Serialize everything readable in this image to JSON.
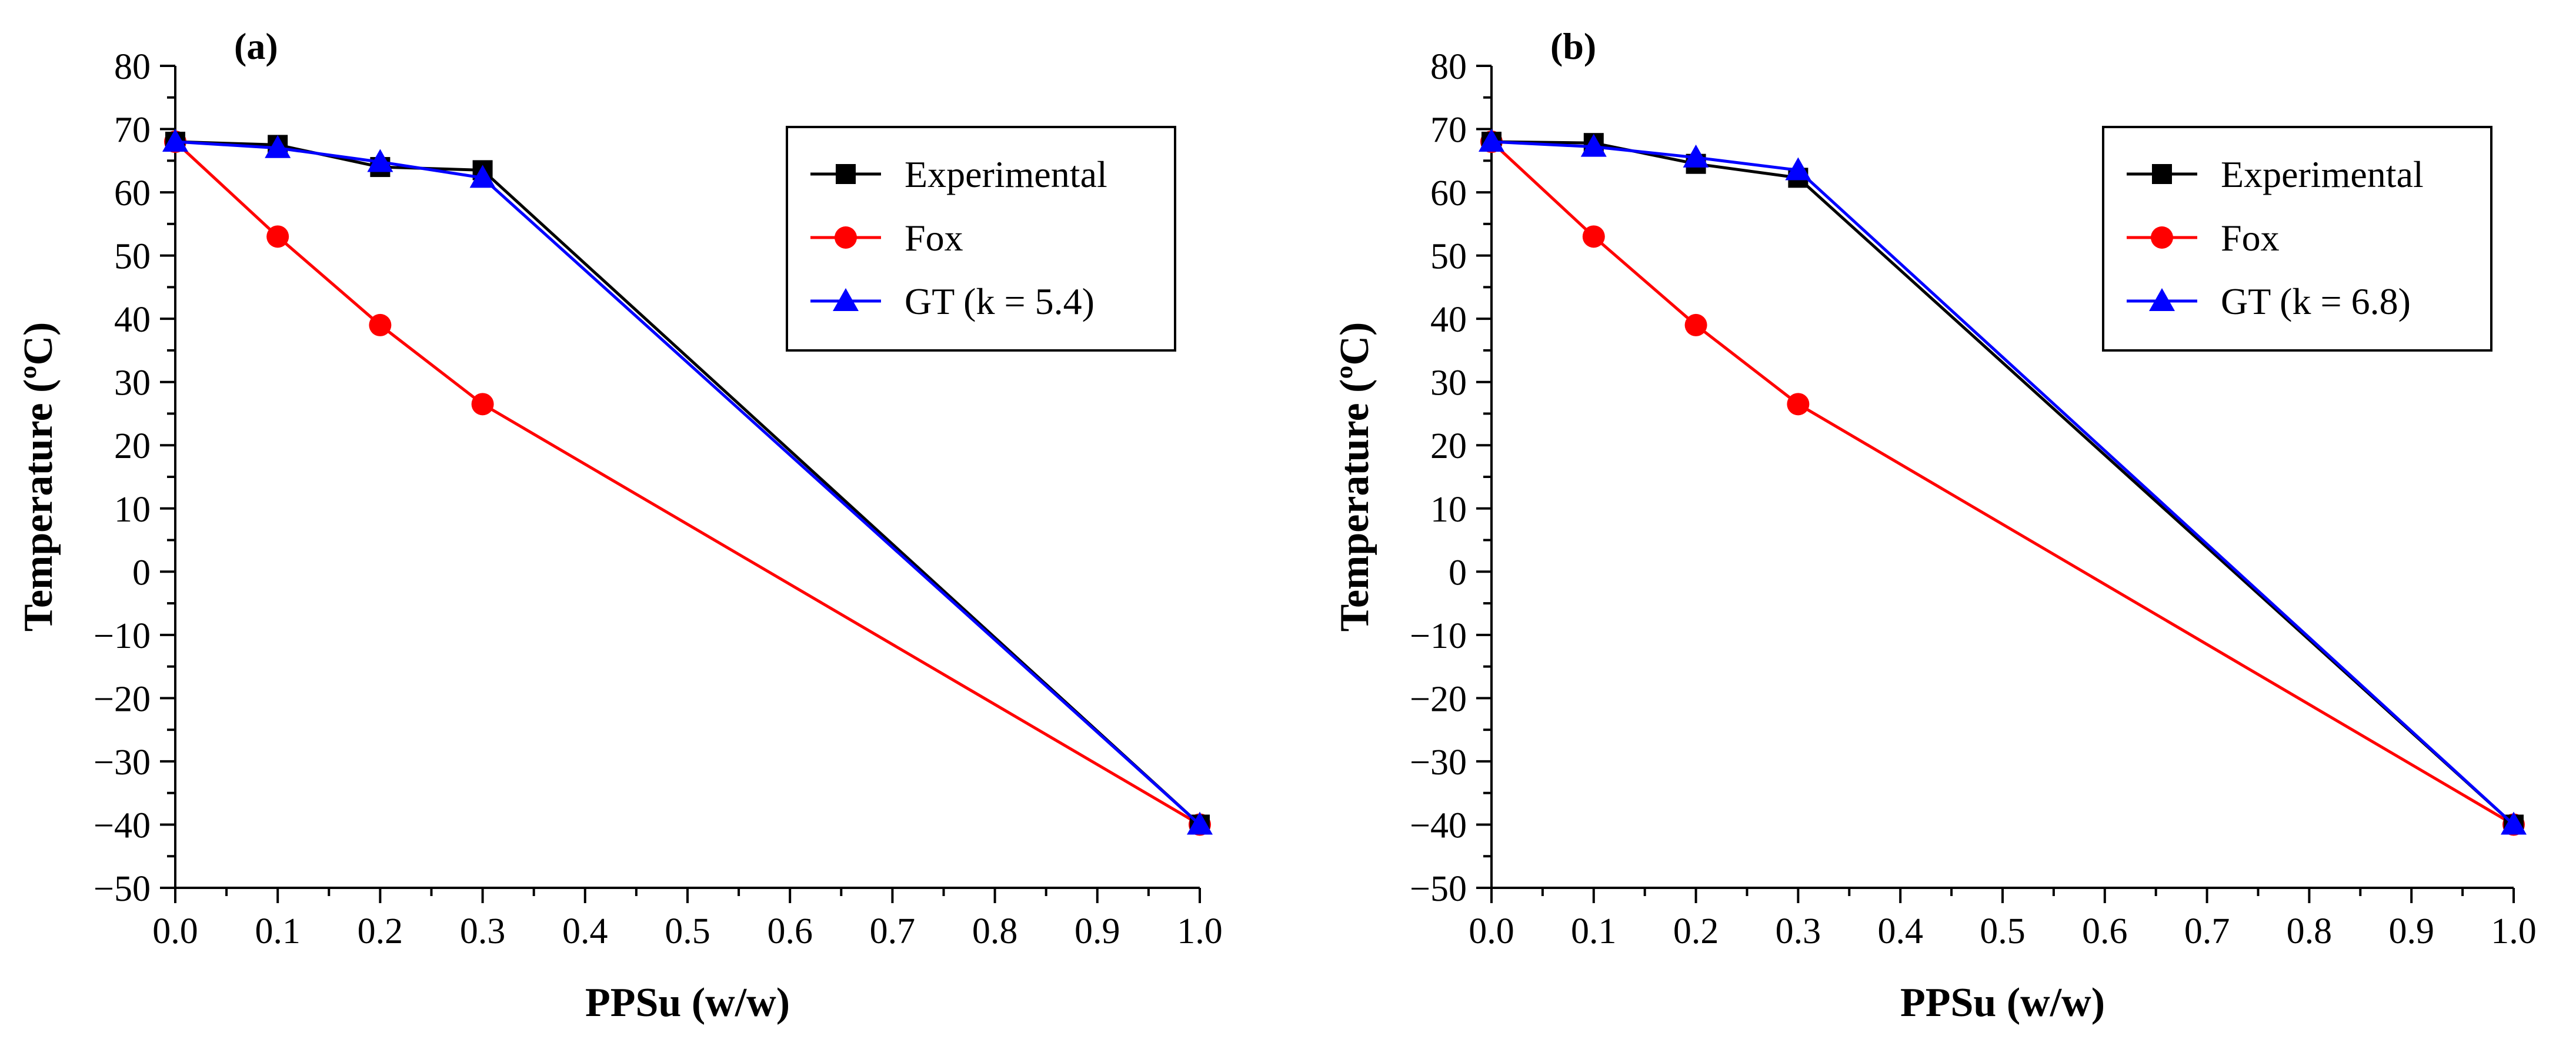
{
  "chart_data": [
    {
      "type": "line",
      "panel_label": "(a)",
      "title": "",
      "xlabel": "PPSu (w/w)",
      "ylabel": "Temperature (ºC)",
      "xlim": [
        0.0,
        1.0
      ],
      "ylim": [
        -50,
        80
      ],
      "x_ticks": [
        "0.0",
        "0.1",
        "0.2",
        "0.3",
        "0.4",
        "0.5",
        "0.6",
        "0.7",
        "0.8",
        "0.9",
        "1.0"
      ],
      "y_ticks": [
        "80",
        "70",
        "60",
        "50",
        "40",
        "30",
        "20",
        "10",
        "0",
        "−10",
        "−20",
        "−30",
        "−40",
        "−50"
      ],
      "grid": false,
      "legend_position": "top-right",
      "series": [
        {
          "name": "Experimental",
          "marker": "square",
          "color": "#000000",
          "x": [
            0.0,
            0.1,
            0.2,
            0.3,
            1.0
          ],
          "values": [
            68.0,
            67.5,
            64.0,
            63.5,
            -40.0
          ]
        },
        {
          "name": "Fox",
          "marker": "circle",
          "color": "#ff0000",
          "x": [
            0.0,
            0.1,
            0.2,
            0.3,
            1.0
          ],
          "values": [
            68.0,
            53.0,
            39.0,
            26.5,
            -40.0
          ]
        },
        {
          "name": "GT (k = 5.4)",
          "marker": "triangle",
          "color": "#0000ff",
          "x": [
            0.0,
            0.1,
            0.2,
            0.3,
            1.0
          ],
          "values": [
            68.0,
            67.0,
            64.8,
            62.3,
            -40.0
          ]
        }
      ]
    },
    {
      "type": "line",
      "panel_label": "(b)",
      "title": "",
      "xlabel": "PPSu (w/w)",
      "ylabel": "Temperature (ºC)",
      "xlim": [
        0.0,
        1.0
      ],
      "ylim": [
        -50,
        80
      ],
      "x_ticks": [
        "0.0",
        "0.1",
        "0.2",
        "0.3",
        "0.4",
        "0.5",
        "0.6",
        "0.7",
        "0.8",
        "0.9",
        "1.0"
      ],
      "y_ticks": [
        "80",
        "70",
        "60",
        "50",
        "40",
        "30",
        "20",
        "10",
        "0",
        "−10",
        "−20",
        "−30",
        "−40",
        "−50"
      ],
      "grid": false,
      "legend_position": "top-right",
      "series": [
        {
          "name": "Experimental",
          "marker": "square",
          "color": "#000000",
          "x": [
            0.0,
            0.1,
            0.2,
            0.3,
            1.0
          ],
          "values": [
            68.0,
            67.8,
            64.5,
            62.3,
            -40.0
          ]
        },
        {
          "name": "Fox",
          "marker": "circle",
          "color": "#ff0000",
          "x": [
            0.0,
            0.1,
            0.2,
            0.3,
            1.0
          ],
          "values": [
            68.0,
            53.0,
            39.0,
            26.5,
            -40.0
          ]
        },
        {
          "name": "GT (k = 6.8)",
          "marker": "triangle",
          "color": "#0000ff",
          "x": [
            0.0,
            0.1,
            0.2,
            0.3,
            1.0
          ],
          "values": [
            68.0,
            67.2,
            65.5,
            63.5,
            -40.0
          ]
        }
      ]
    }
  ]
}
